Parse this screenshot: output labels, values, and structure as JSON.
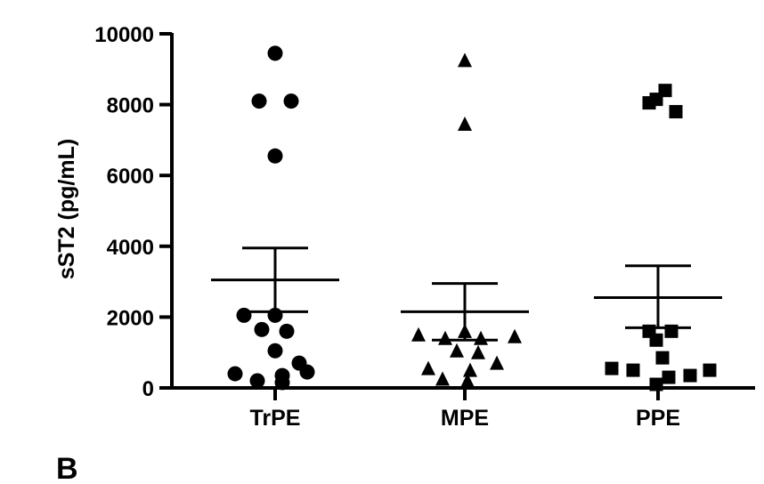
{
  "panel_label": "B",
  "chart_data": {
    "type": "scatter",
    "ylabel": "sST2 (pg/mL)",
    "ylim": [
      0,
      10000
    ],
    "yticks": [
      0,
      2000,
      4000,
      6000,
      8000,
      10000
    ],
    "ytick_labels": [
      "0",
      "2000",
      "4000",
      "6000",
      "8000",
      "10000"
    ],
    "categories": [
      "TrPE",
      "MPE",
      "PPE"
    ],
    "grid": false,
    "series": [
      {
        "category": "TrPE",
        "marker": "circle",
        "values": [
          9450,
          8100,
          8100,
          6550,
          2050,
          2050,
          1650,
          1600,
          1050,
          700,
          450,
          400,
          350,
          200,
          150
        ],
        "jitter": [
          0,
          -0.18,
          0.18,
          0,
          -0.35,
          0,
          -0.15,
          0.13,
          0,
          0.27,
          0.36,
          -0.45,
          0.08,
          -0.2,
          0.08
        ],
        "mean": 3050,
        "error": [
          2150,
          3950
        ]
      },
      {
        "category": "MPE",
        "marker": "triangle",
        "values": [
          9250,
          7450,
          1600,
          1500,
          1450,
          1400,
          1400,
          1050,
          1000,
          700,
          550,
          500,
          250,
          200
        ],
        "jitter": [
          0,
          0,
          0,
          -0.52,
          0.56,
          -0.22,
          0.18,
          -0.09,
          0.15,
          0.36,
          -0.41,
          0.06,
          -0.25,
          0.03
        ],
        "mean": 2150,
        "error": [
          1350,
          2950
        ]
      },
      {
        "category": "PPE",
        "marker": "square",
        "values": [
          8400,
          8150,
          8050,
          7800,
          1600,
          1600,
          1350,
          850,
          550,
          500,
          500,
          350,
          300,
          100
        ],
        "jitter": [
          0.08,
          -0.02,
          -0.1,
          0.2,
          -0.1,
          0.15,
          -0.02,
          0.05,
          -0.52,
          0.58,
          -0.28,
          0.36,
          0.12,
          -0.02
        ],
        "mean": 2550,
        "error": [
          1700,
          3450
        ]
      }
    ]
  }
}
